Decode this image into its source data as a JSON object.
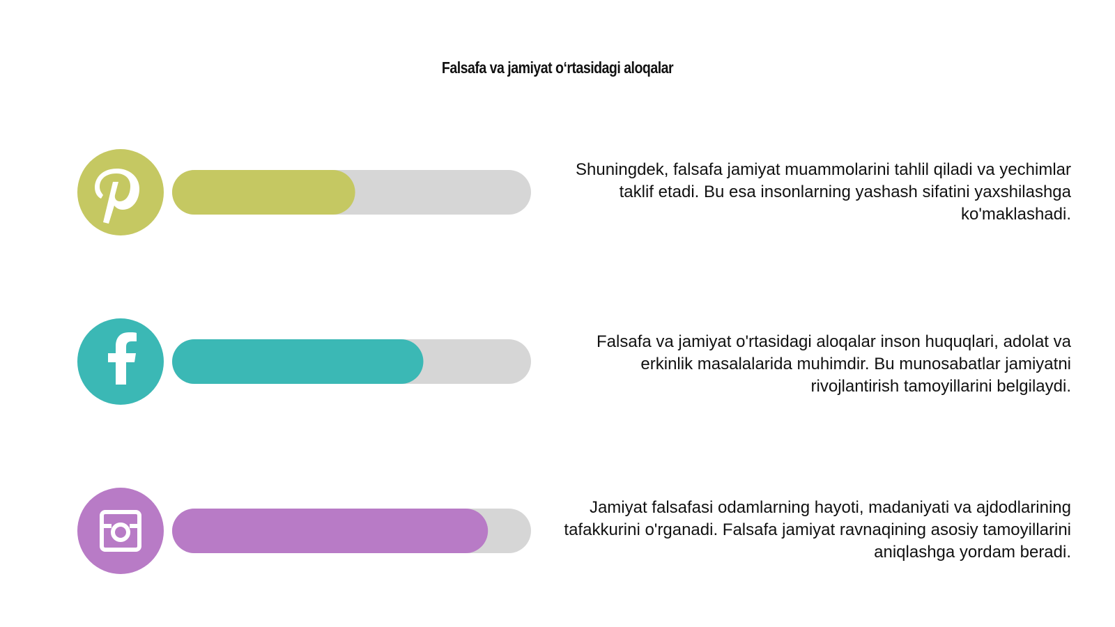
{
  "title": "Falsafa va jamiyat oʻrtasidagi aloqalar",
  "scale": [
    0,
    100
  ],
  "items": [
    {
      "icon": "pinterest",
      "color": "#c5c862",
      "progress": 51,
      "text": "Shuningdek, falsafa jamiyat muammolarini tahlil qiladi va yechimlar taklif etadi. Bu esa insonlarning yashash sifatini yaxshilashga ko'maklashadi."
    },
    {
      "icon": "facebook",
      "color": "#3bb8b5",
      "progress": 70,
      "text": "Falsafa va jamiyat o'rtasidagi aloqalar inson huquqlari, adolat va erkinlik masalalarida muhimdir. Bu munosabatlar jamiyatni rivojlantirish tamoyillarini belgilaydi."
    },
    {
      "icon": "instagram",
      "color": "#b87bc6",
      "progress": 88,
      "text": "Jamiyat falsafasi odamlarning hayoti, madaniyati va ajdodlarining tafakkurini o'rganadi. Falsafa jamiyat ravnaqining asosiy tamoyillarini aniqlashga yordam beradi."
    }
  ]
}
